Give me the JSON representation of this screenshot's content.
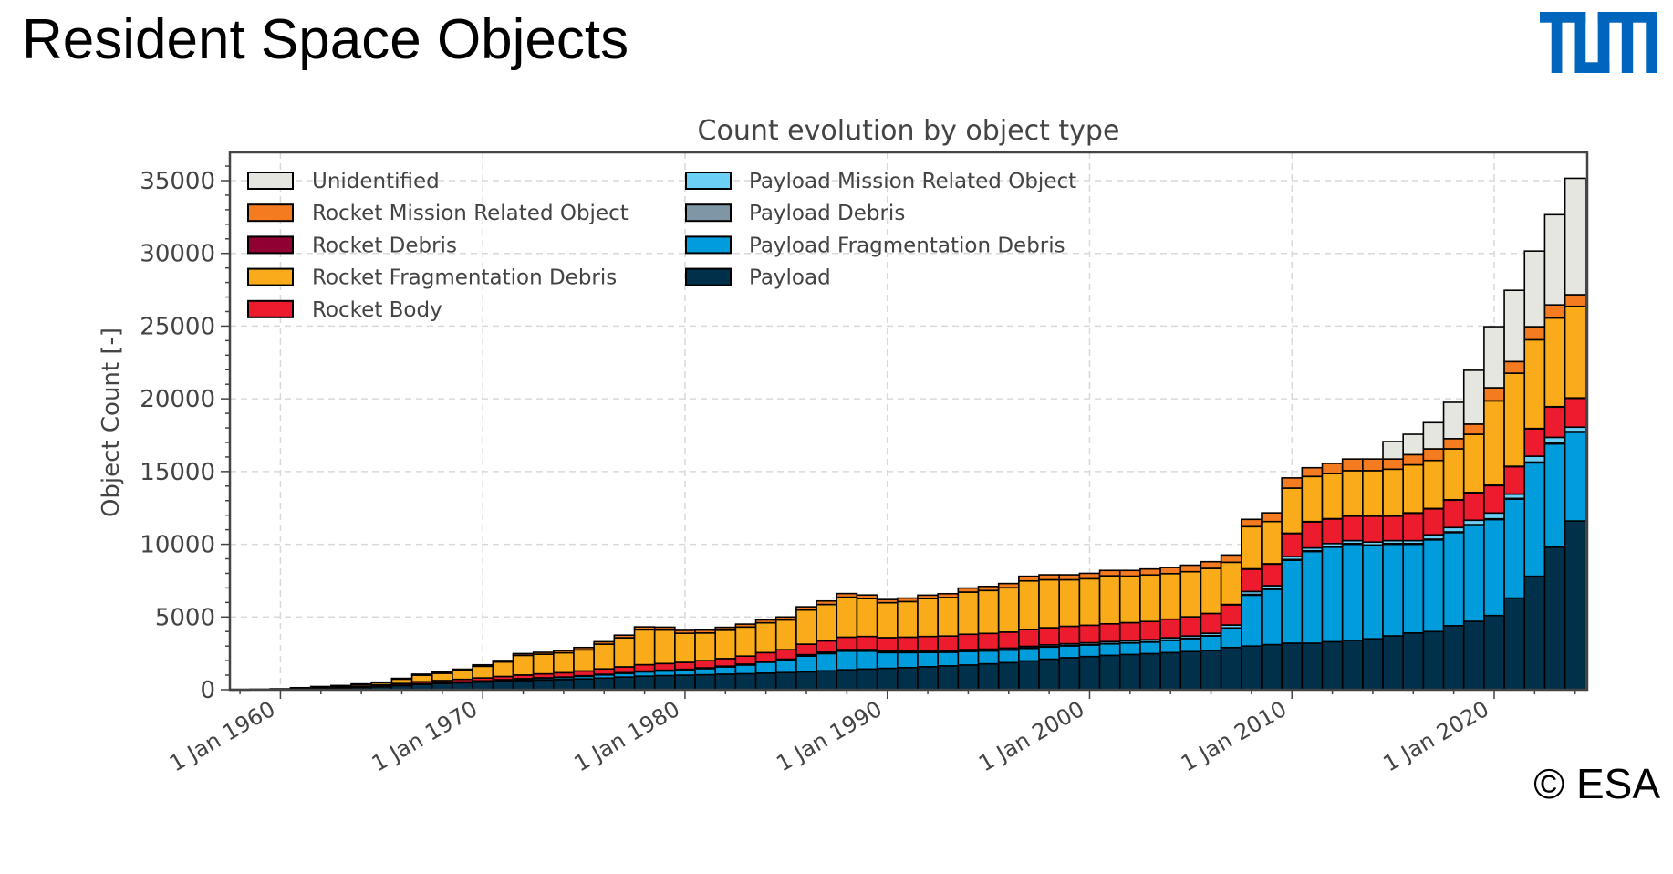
{
  "slide": {
    "title": "Resident Space Objects",
    "logo_text": "TUM",
    "copyright": "© ESA",
    "logo_color": "#0065BD"
  },
  "chart_data": {
    "type": "bar",
    "stacked": true,
    "title": "Count evolution by object type",
    "xlabel": "",
    "ylabel": "Object Count [-]",
    "ylim": [
      0,
      36900
    ],
    "xlim": [
      1957.5,
      2024.6
    ],
    "grid": true,
    "legend_placement": "top-left",
    "yticks": [
      0,
      5000,
      10000,
      15000,
      20000,
      25000,
      30000,
      35000
    ],
    "ytick_labels": [
      "0",
      "5000",
      "10000",
      "15000",
      "20000",
      "25000",
      "30000",
      "35000"
    ],
    "xticks": [
      1960,
      1970,
      1980,
      1990,
      2000,
      2010,
      2020
    ],
    "xtick_labels": [
      "1 Jan 1960",
      "1 Jan 1970",
      "1 Jan 1980",
      "1 Jan 1990",
      "1 Jan 2000",
      "1 Jan 2010",
      "1 Jan 2020"
    ],
    "x": [
      1958,
      1959,
      1960,
      1961,
      1962,
      1963,
      1964,
      1965,
      1966,
      1967,
      1968,
      1969,
      1970,
      1971,
      1972,
      1973,
      1974,
      1975,
      1976,
      1977,
      1978,
      1979,
      1980,
      1981,
      1982,
      1983,
      1984,
      1985,
      1986,
      1987,
      1988,
      1989,
      1990,
      1991,
      1992,
      1993,
      1994,
      1995,
      1996,
      1997,
      1998,
      1999,
      2000,
      2001,
      2002,
      2003,
      2004,
      2005,
      2006,
      2007,
      2008,
      2009,
      2010,
      2011,
      2012,
      2013,
      2014,
      2015,
      2016,
      2017,
      2018,
      2019,
      2020,
      2021,
      2022,
      2023,
      2024
    ],
    "series": [
      {
        "key": "U",
        "name": "Unidentified",
        "color": "#E6E6E1",
        "values": [
          0,
          0,
          0,
          0,
          0,
          0,
          0,
          0,
          0,
          0,
          0,
          0,
          0,
          0,
          0,
          0,
          0,
          0,
          0,
          0,
          0,
          0,
          0,
          0,
          0,
          0,
          0,
          0,
          0,
          0,
          0,
          0,
          0,
          0,
          0,
          0,
          0,
          0,
          0,
          0,
          0,
          0,
          0,
          0,
          0,
          0,
          0,
          0,
          0,
          0,
          0,
          0,
          0,
          0,
          0,
          0,
          0,
          1200,
          1400,
          1800,
          2500,
          3700,
          4200,
          4900,
          5200,
          6200,
          8000
        ]
      },
      {
        "key": "RM",
        "name": "Rocket Mission Related Object",
        "color": "#F47B20",
        "values": [
          0,
          0,
          0,
          10,
          20,
          20,
          30,
          40,
          50,
          70,
          80,
          100,
          100,
          100,
          120,
          130,
          150,
          160,
          170,
          180,
          200,
          200,
          200,
          200,
          200,
          200,
          200,
          200,
          220,
          240,
          250,
          250,
          220,
          240,
          240,
          260,
          280,
          280,
          290,
          320,
          340,
          340,
          370,
          370,
          390,
          410,
          420,
          450,
          460,
          500,
          500,
          600,
          700,
          600,
          700,
          800,
          800,
          700,
          700,
          800,
          700,
          700,
          900,
          800,
          900,
          900,
          800
        ]
      },
      {
        "key": "RD",
        "name": "Rocket Debris",
        "color": "#8F0033",
        "values": [
          0,
          0,
          0,
          0,
          0,
          0,
          0,
          0,
          0,
          0,
          0,
          0,
          0,
          0,
          0,
          0,
          0,
          0,
          0,
          0,
          0,
          0,
          0,
          0,
          0,
          0,
          0,
          0,
          0,
          0,
          0,
          0,
          0,
          0,
          0,
          0,
          0,
          0,
          0,
          0,
          0,
          0,
          0,
          0,
          0,
          0,
          0,
          0,
          0,
          10,
          10,
          10,
          10,
          10,
          10,
          10,
          10,
          10,
          10,
          10,
          10,
          10,
          10,
          10,
          10,
          10,
          10
        ]
      },
      {
        "key": "RF",
        "name": "Rocket Fragmentation Debris",
        "color": "#F9AB1A",
        "values": [
          0,
          0,
          10,
          50,
          80,
          100,
          120,
          150,
          300,
          450,
          500,
          600,
          800,
          1000,
          1350,
          1350,
          1370,
          1450,
          1700,
          2000,
          2400,
          2300,
          2000,
          1900,
          1950,
          2000,
          2050,
          2050,
          2350,
          2500,
          2750,
          2600,
          2400,
          2450,
          2600,
          2650,
          2900,
          2950,
          3050,
          3350,
          3300,
          3200,
          3200,
          3300,
          3200,
          3200,
          3130,
          3100,
          3100,
          2900,
          2900,
          2900,
          3100,
          3100,
          3100,
          3100,
          3100,
          3200,
          3300,
          3300,
          3500,
          4000,
          5800,
          6400,
          6100,
          6100,
          6300
        ]
      },
      {
        "key": "RB",
        "name": "Rocket Body",
        "color": "#EC1C2E",
        "values": [
          10,
          10,
          20,
          30,
          40,
          50,
          70,
          90,
          110,
          130,
          150,
          170,
          200,
          220,
          250,
          270,
          300,
          330,
          370,
          400,
          440,
          460,
          480,
          500,
          520,
          550,
          600,
          650,
          720,
          780,
          850,
          900,
          920,
          950,
          980,
          1000,
          1050,
          1080,
          1100,
          1150,
          1180,
          1200,
          1200,
          1220,
          1230,
          1250,
          1280,
          1320,
          1360,
          1400,
          1550,
          1500,
          1600,
          1800,
          1700,
          1700,
          1800,
          1700,
          1900,
          1800,
          1900,
          1900,
          1900,
          1900,
          1900,
          2100,
          2000
        ]
      },
      {
        "key": "PM",
        "name": "Payload Mission Related Object",
        "color": "#6CCFF6",
        "values": [
          0,
          0,
          0,
          0,
          0,
          0,
          10,
          10,
          10,
          20,
          20,
          20,
          20,
          30,
          30,
          30,
          30,
          40,
          40,
          40,
          50,
          50,
          50,
          50,
          50,
          60,
          60,
          60,
          70,
          70,
          80,
          80,
          80,
          80,
          90,
          90,
          100,
          100,
          110,
          110,
          120,
          120,
          130,
          130,
          140,
          140,
          150,
          150,
          160,
          200,
          200,
          200,
          200,
          200,
          200,
          200,
          200,
          200,
          200,
          300,
          300,
          300,
          400,
          300,
          400,
          400,
          300
        ]
      },
      {
        "key": "PD",
        "name": "Payload Debris",
        "color": "#7F96A6",
        "values": [
          0,
          0,
          0,
          0,
          0,
          0,
          0,
          0,
          0,
          0,
          0,
          0,
          0,
          0,
          0,
          0,
          0,
          0,
          0,
          0,
          0,
          0,
          0,
          0,
          0,
          0,
          0,
          10,
          10,
          10,
          10,
          10,
          10,
          10,
          10,
          10,
          10,
          10,
          10,
          10,
          10,
          20,
          20,
          20,
          20,
          20,
          20,
          20,
          20,
          50,
          50,
          50,
          50,
          50,
          50,
          50,
          50,
          50,
          50,
          50,
          50,
          50,
          50,
          50,
          50,
          50,
          50
        ]
      },
      {
        "key": "PF",
        "name": "Payload Fragmentation Debris",
        "color": "#009CDC",
        "values": [
          0,
          0,
          0,
          0,
          0,
          0,
          0,
          10,
          10,
          20,
          30,
          40,
          60,
          80,
          100,
          120,
          140,
          180,
          220,
          260,
          300,
          320,
          350,
          420,
          500,
          600,
          750,
          850,
          1100,
          1200,
          1300,
          1250,
          1100,
          1050,
          1000,
          950,
          950,
          900,
          880,
          880,
          850,
          820,
          800,
          800,
          800,
          800,
          850,
          900,
          1000,
          1300,
          3500,
          3800,
          5700,
          6300,
          6500,
          6600,
          6400,
          6300,
          6100,
          6300,
          6400,
          6600,
          6600,
          6800,
          7800,
          7100,
          6100
        ]
      },
      {
        "key": "P",
        "name": "Payload",
        "color": "#00304A",
        "values": [
          10,
          20,
          30,
          50,
          80,
          120,
          170,
          220,
          300,
          380,
          430,
          480,
          530,
          580,
          630,
          670,
          700,
          740,
          800,
          870,
          930,
          970,
          1000,
          1030,
          1070,
          1100,
          1140,
          1180,
          1230,
          1300,
          1370,
          1420,
          1470,
          1520,
          1580,
          1640,
          1700,
          1780,
          1860,
          1980,
          2100,
          2200,
          2280,
          2360,
          2420,
          2480,
          2550,
          2620,
          2700,
          2900,
          3000,
          3100,
          3200,
          3200,
          3300,
          3400,
          3500,
          3700,
          3900,
          4000,
          4400,
          4700,
          5100,
          6300,
          7800,
          9800,
          11600
        ]
      }
    ]
  }
}
